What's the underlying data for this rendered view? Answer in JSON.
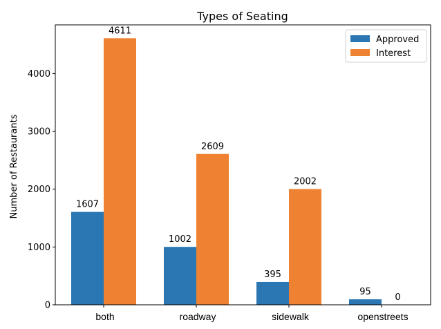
{
  "chart_data": {
    "type": "bar",
    "title": "Types of Seating",
    "xlabel": "",
    "ylabel": "Number of Restaurants",
    "categories": [
      "both",
      "roadway",
      "sidewalk",
      "openstreets"
    ],
    "series": [
      {
        "name": "Approved",
        "values": [
          1607,
          1002,
          395,
          95
        ],
        "color": "#2a77b4"
      },
      {
        "name": "Interest",
        "values": [
          4611,
          2609,
          2002,
          0
        ],
        "color": "#ef8232"
      }
    ],
    "ylim": [
      0,
      4842
    ],
    "yticks": [
      0,
      1000,
      2000,
      3000,
      4000
    ],
    "grid": false,
    "legend_position": "top-right"
  }
}
